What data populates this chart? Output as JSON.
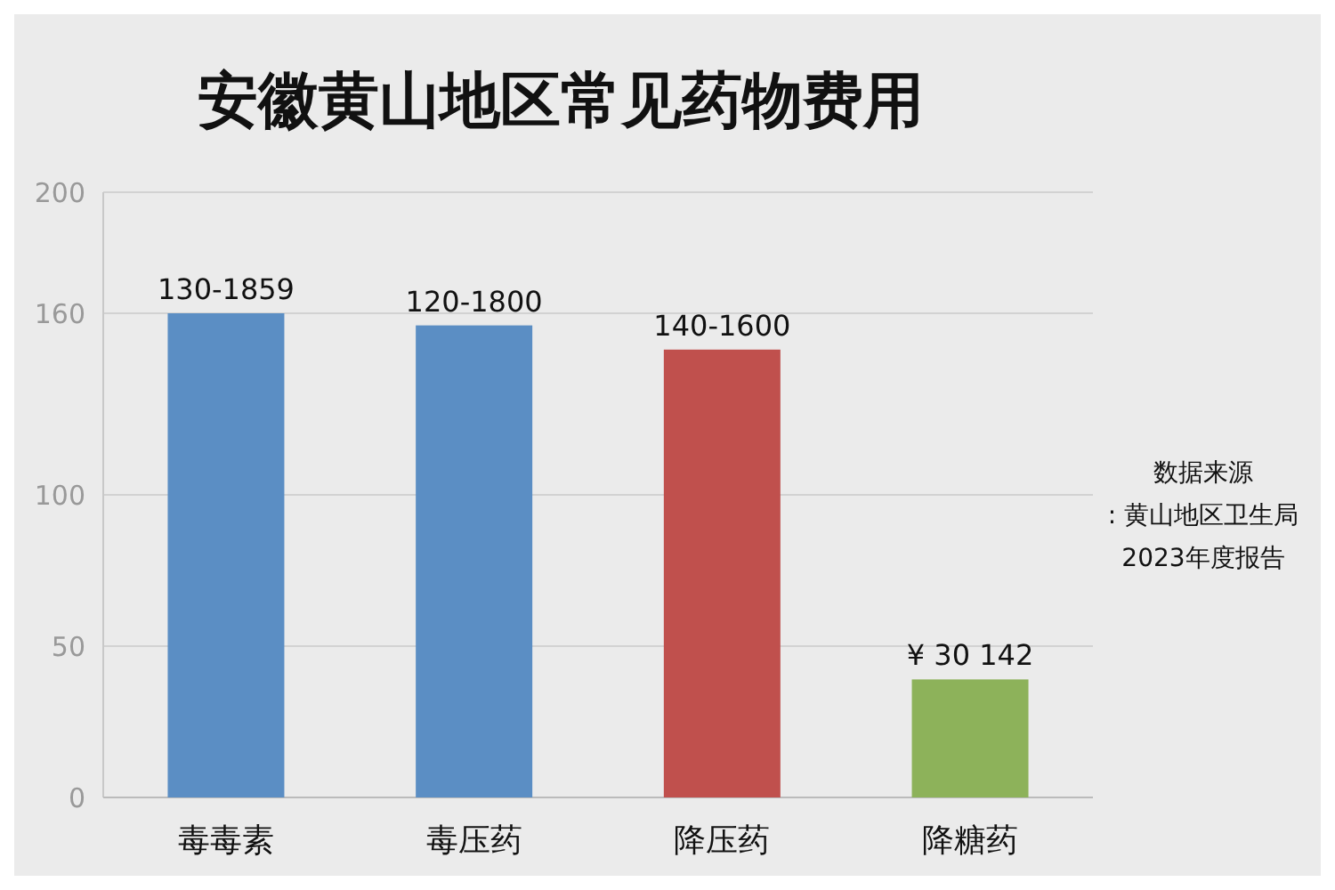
{
  "chart_data": {
    "type": "bar",
    "title": "安徽黄山地区常见药物费用",
    "categories": [
      "毒毒素",
      "毒压药",
      "降压药",
      "降糖药"
    ],
    "values": [
      160,
      156,
      148,
      39
    ],
    "colors": [
      "#5b8ec4",
      "#5b8ec4",
      "#c0504d",
      "#8db25a"
    ],
    "ylim": [
      0,
      200
    ],
    "yticks": [
      0,
      50,
      100,
      160,
      200
    ],
    "grid": "y",
    "annotations": [
      {
        "text": "130-1859",
        "x": "毒毒素",
        "y": 160
      },
      {
        "text": "120-1800",
        "x": "毒压药",
        "y": 156
      },
      {
        "text": "140-1600",
        "x": "降压药",
        "y": 148
      },
      {
        "text": "¥ 30 142",
        "x": "降糖药",
        "y": 39
      },
      "数据来源\n: 黄山地区卫生局\n2023年度报告"
    ]
  }
}
